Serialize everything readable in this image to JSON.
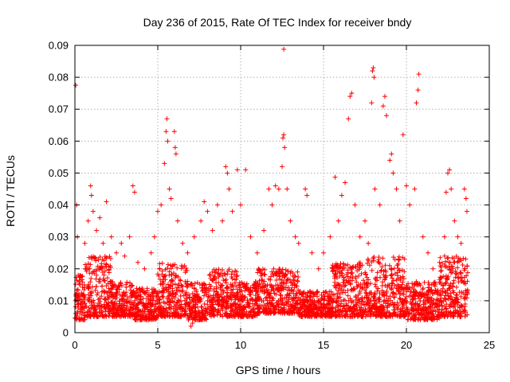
{
  "chart_data": {
    "type": "scatter",
    "title": "Day 236 of 2015, Rate Of TEC Index for receiver bndy",
    "xlabel": "GPS time / hours",
    "ylabel": "ROTI / TECUs",
    "xlim": [
      0,
      25
    ],
    "ylim": [
      0,
      0.09
    ],
    "x_ticks": [
      "0",
      "5",
      "10",
      "15",
      "20",
      "25"
    ],
    "y_ticks": [
      "0",
      "0.01",
      "0.02",
      "0.03",
      "0.04",
      "0.05",
      "0.06",
      "0.07",
      "0.08",
      "0.09"
    ],
    "grid": true,
    "marker": "plus",
    "color": "#ff0000",
    "series": [
      {
        "points": [
          [
            0.05,
            0.0775
          ],
          [
            0.1,
            0.04
          ],
          [
            0.15,
            0.03
          ],
          [
            0.2,
            0.018
          ],
          [
            0.3,
            0.015
          ],
          [
            0.5,
            0.012
          ],
          [
            0.6,
            0.028
          ],
          [
            0.8,
            0.035
          ],
          [
            0.95,
            0.046
          ],
          [
            1.0,
            0.043
          ],
          [
            1.1,
            0.038
          ],
          [
            1.3,
            0.032
          ],
          [
            1.5,
            0.036
          ],
          [
            1.7,
            0.028
          ],
          [
            1.9,
            0.041
          ],
          [
            2.2,
            0.03
          ],
          [
            2.5,
            0.025
          ],
          [
            2.8,
            0.028
          ],
          [
            3.0,
            0.024
          ],
          [
            3.3,
            0.03
          ],
          [
            3.5,
            0.046
          ],
          [
            3.6,
            0.044
          ],
          [
            3.8,
            0.022
          ],
          [
            4.2,
            0.02
          ],
          [
            4.6,
            0.025
          ],
          [
            4.8,
            0.03
          ],
          [
            5.0,
            0.038
          ],
          [
            5.2,
            0.04
          ],
          [
            5.4,
            0.053
          ],
          [
            5.5,
            0.063
          ],
          [
            5.55,
            0.067
          ],
          [
            5.6,
            0.06
          ],
          [
            5.7,
            0.045
          ],
          [
            5.8,
            0.042
          ],
          [
            6.0,
            0.063
          ],
          [
            6.05,
            0.058
          ],
          [
            6.1,
            0.056
          ],
          [
            6.2,
            0.035
          ],
          [
            6.5,
            0.028
          ],
          [
            6.8,
            0.025
          ],
          [
            7.2,
            0.03
          ],
          [
            7.6,
            0.035
          ],
          [
            7.8,
            0.041
          ],
          [
            8.0,
            0.038
          ],
          [
            8.3,
            0.032
          ],
          [
            8.6,
            0.04
          ],
          [
            8.9,
            0.035
          ],
          [
            9.1,
            0.052
          ],
          [
            9.2,
            0.05
          ],
          [
            9.3,
            0.045
          ],
          [
            9.5,
            0.038
          ],
          [
            9.8,
            0.051
          ],
          [
            10.0,
            0.04
          ],
          [
            10.3,
            0.051
          ],
          [
            10.6,
            0.03
          ],
          [
            11.0,
            0.025
          ],
          [
            11.4,
            0.032
          ],
          [
            11.7,
            0.045
          ],
          [
            11.9,
            0.04
          ],
          [
            12.1,
            0.046
          ],
          [
            12.3,
            0.045
          ],
          [
            12.5,
            0.052
          ],
          [
            12.55,
            0.061
          ],
          [
            12.6,
            0.062
          ],
          [
            12.65,
            0.058
          ],
          [
            12.6,
            0.0888
          ],
          [
            12.8,
            0.045
          ],
          [
            13.0,
            0.035
          ],
          [
            13.3,
            0.03
          ],
          [
            13.5,
            0.028
          ],
          [
            13.9,
            0.045
          ],
          [
            14.0,
            0.043
          ],
          [
            14.3,
            0.025
          ],
          [
            14.7,
            0.02
          ],
          [
            15.0,
            0.025
          ],
          [
            15.4,
            0.03
          ],
          [
            15.7,
            0.0487
          ],
          [
            15.9,
            0.035
          ],
          [
            16.1,
            0.043
          ],
          [
            16.3,
            0.047
          ],
          [
            16.5,
            0.067
          ],
          [
            16.6,
            0.074
          ],
          [
            16.7,
            0.075
          ],
          [
            16.9,
            0.04
          ],
          [
            17.2,
            0.03
          ],
          [
            17.5,
            0.035
          ],
          [
            17.7,
            0.028
          ],
          [
            17.9,
            0.072
          ],
          [
            17.95,
            0.082
          ],
          [
            18.0,
            0.083
          ],
          [
            18.05,
            0.08
          ],
          [
            18.1,
            0.045
          ],
          [
            18.4,
            0.04
          ],
          [
            18.6,
            0.071
          ],
          [
            18.7,
            0.074
          ],
          [
            18.8,
            0.068
          ],
          [
            19.0,
            0.054
          ],
          [
            19.1,
            0.056
          ],
          [
            19.2,
            0.05
          ],
          [
            19.4,
            0.045
          ],
          [
            19.6,
            0.035
          ],
          [
            19.8,
            0.062
          ],
          [
            20.0,
            0.046
          ],
          [
            20.2,
            0.04
          ],
          [
            20.5,
            0.045
          ],
          [
            20.6,
            0.072
          ],
          [
            20.7,
            0.076
          ],
          [
            20.75,
            0.081
          ],
          [
            21.0,
            0.03
          ],
          [
            21.3,
            0.025
          ],
          [
            21.6,
            0.02
          ],
          [
            22.0,
            0.022
          ],
          [
            22.3,
            0.03
          ],
          [
            22.4,
            0.044
          ],
          [
            22.5,
            0.05
          ],
          [
            22.6,
            0.051
          ],
          [
            22.7,
            0.045
          ],
          [
            22.9,
            0.035
          ],
          [
            23.1,
            0.03
          ],
          [
            23.3,
            0.028
          ],
          [
            23.5,
            0.045
          ],
          [
            23.6,
            0.042
          ],
          [
            23.65,
            0.038
          ],
          [
            7.0,
            0.002
          ],
          [
            7.1,
            0.003
          ],
          [
            3.8,
            0.004
          ]
        ]
      }
    ],
    "dense_band": {
      "ranges": [
        [
          0.0,
          0.6,
          0.004,
          0.018
        ],
        [
          0.6,
          2.2,
          0.005,
          0.024
        ],
        [
          2.2,
          3.5,
          0.005,
          0.016
        ],
        [
          3.5,
          5.0,
          0.004,
          0.014
        ],
        [
          5.0,
          6.8,
          0.005,
          0.022
        ],
        [
          6.8,
          8.0,
          0.004,
          0.016
        ],
        [
          8.0,
          9.8,
          0.005,
          0.02
        ],
        [
          9.8,
          11.0,
          0.005,
          0.016
        ],
        [
          11.0,
          13.5,
          0.006,
          0.02
        ],
        [
          13.5,
          15.5,
          0.005,
          0.013
        ],
        [
          15.5,
          17.5,
          0.005,
          0.022
        ],
        [
          17.5,
          20.0,
          0.005,
          0.024
        ],
        [
          20.0,
          22.0,
          0.004,
          0.016
        ],
        [
          22.0,
          23.7,
          0.005,
          0.024
        ]
      ]
    }
  }
}
